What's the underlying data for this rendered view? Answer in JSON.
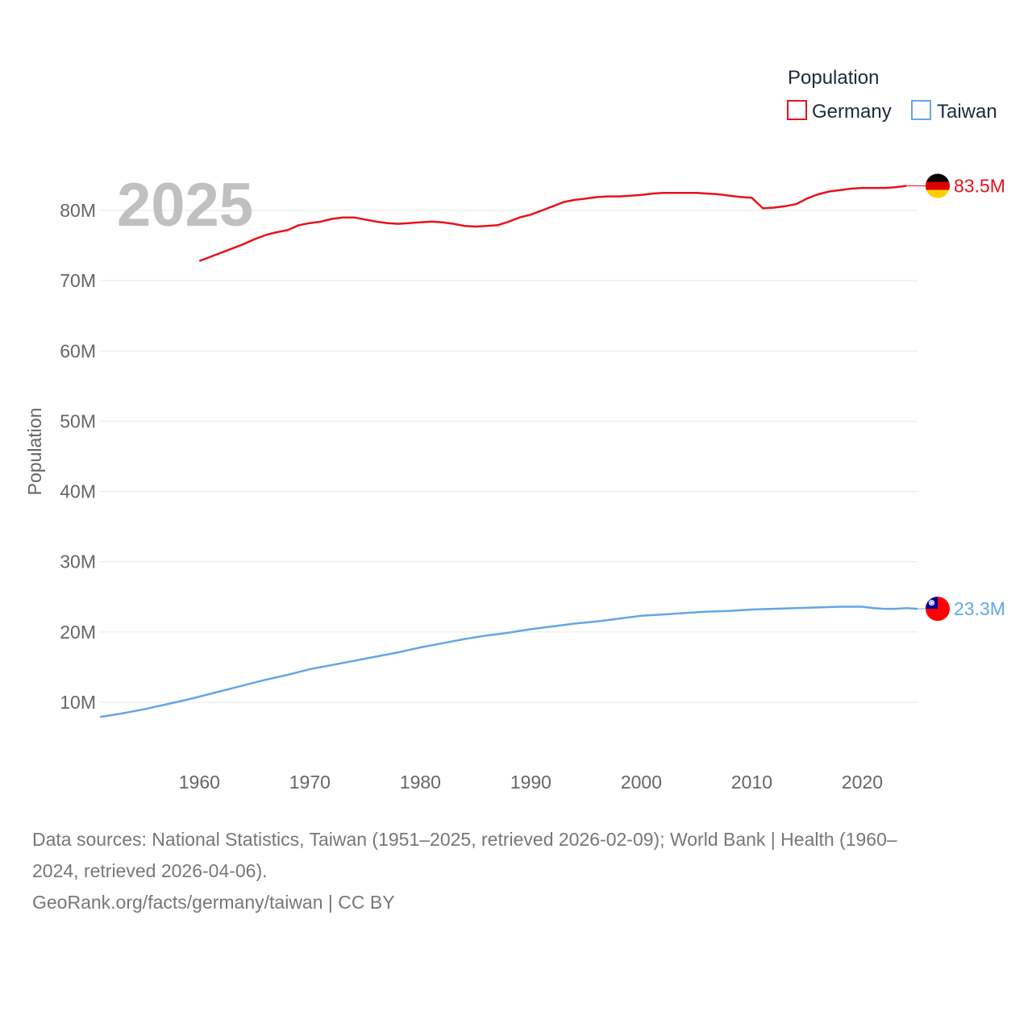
{
  "chart_data": {
    "type": "line",
    "title": "",
    "legend_title": "Population",
    "legend_position": "top-right",
    "current_year": "2025",
    "ylabel": "Population",
    "xlabel": "",
    "xlim": [
      1951,
      2025
    ],
    "ylim": [
      0,
      88000000
    ],
    "x_ticks": [
      1960,
      1970,
      1980,
      1990,
      2000,
      2010,
      2020
    ],
    "x_tick_labels": [
      "1960",
      "1970",
      "1980",
      "1990",
      "2000",
      "2010",
      "2020"
    ],
    "y_ticks": [
      10000000,
      20000000,
      30000000,
      40000000,
      50000000,
      60000000,
      70000000,
      80000000
    ],
    "y_tick_labels": [
      "10M",
      "20M",
      "30M",
      "40M",
      "50M",
      "60M",
      "70M",
      "80M"
    ],
    "series": [
      {
        "name": "Germany",
        "color": "#e8121b",
        "end_label": "83.5M",
        "flag": "germany-flag",
        "x": [
          1960,
          1961,
          1962,
          1963,
          1964,
          1965,
          1966,
          1967,
          1968,
          1969,
          1970,
          1971,
          1972,
          1973,
          1974,
          1975,
          1976,
          1977,
          1978,
          1979,
          1980,
          1981,
          1982,
          1983,
          1984,
          1985,
          1986,
          1987,
          1988,
          1989,
          1990,
          1991,
          1992,
          1993,
          1994,
          1995,
          1996,
          1997,
          1998,
          1999,
          2000,
          2001,
          2002,
          2003,
          2004,
          2005,
          2006,
          2007,
          2008,
          2009,
          2010,
          2011,
          2012,
          2013,
          2014,
          2015,
          2016,
          2017,
          2018,
          2019,
          2020,
          2021,
          2022,
          2023,
          2024
        ],
        "y": [
          72800000,
          73400000,
          74000000,
          74600000,
          75200000,
          75900000,
          76500000,
          76900000,
          77200000,
          77900000,
          78200000,
          78400000,
          78800000,
          79000000,
          79000000,
          78700000,
          78400000,
          78200000,
          78100000,
          78200000,
          78300000,
          78400000,
          78300000,
          78100000,
          77800000,
          77700000,
          77800000,
          77900000,
          78400000,
          79000000,
          79400000,
          80000000,
          80600000,
          81200000,
          81500000,
          81700000,
          81900000,
          82000000,
          82000000,
          82100000,
          82200000,
          82400000,
          82500000,
          82500000,
          82500000,
          82500000,
          82400000,
          82300000,
          82100000,
          81900000,
          81800000,
          80300000,
          80400000,
          80600000,
          80900000,
          81700000,
          82300000,
          82700000,
          82900000,
          83100000,
          83200000,
          83200000,
          83200000,
          83300000,
          83500000
        ]
      },
      {
        "name": "Taiwan",
        "color": "#64a6e6",
        "end_label": "23.3M",
        "flag": "taiwan-flag",
        "x": [
          1951,
          1953,
          1955,
          1957,
          1959,
          1961,
          1963,
          1965,
          1966,
          1968,
          1970,
          1972,
          1974,
          1976,
          1978,
          1980,
          1982,
          1984,
          1986,
          1988,
          1990,
          1992,
          1994,
          1996,
          1998,
          2000,
          2002,
          2004,
          2006,
          2008,
          2010,
          2012,
          2014,
          2016,
          2018,
          2019,
          2020,
          2021,
          2022,
          2023,
          2024,
          2025
        ],
        "y": [
          7900000,
          8400000,
          9000000,
          9700000,
          10400000,
          11200000,
          12000000,
          12800000,
          13200000,
          13900000,
          14700000,
          15300000,
          15900000,
          16500000,
          17100000,
          17800000,
          18400000,
          19000000,
          19500000,
          19900000,
          20400000,
          20800000,
          21200000,
          21500000,
          21900000,
          22300000,
          22500000,
          22700000,
          22900000,
          23000000,
          23200000,
          23300000,
          23400000,
          23500000,
          23600000,
          23600000,
          23600000,
          23400000,
          23300000,
          23300000,
          23400000,
          23300000
        ]
      }
    ]
  },
  "footer": {
    "sources_line1": "Data sources: National Statistics, Taiwan (1951–2025, retrieved 2026-02-09); World Bank | Health (1960–",
    "sources_line2": "2024, retrieved 2026-04-06).",
    "attribution": "GeoRank.org/facts/germany/taiwan | CC BY"
  }
}
